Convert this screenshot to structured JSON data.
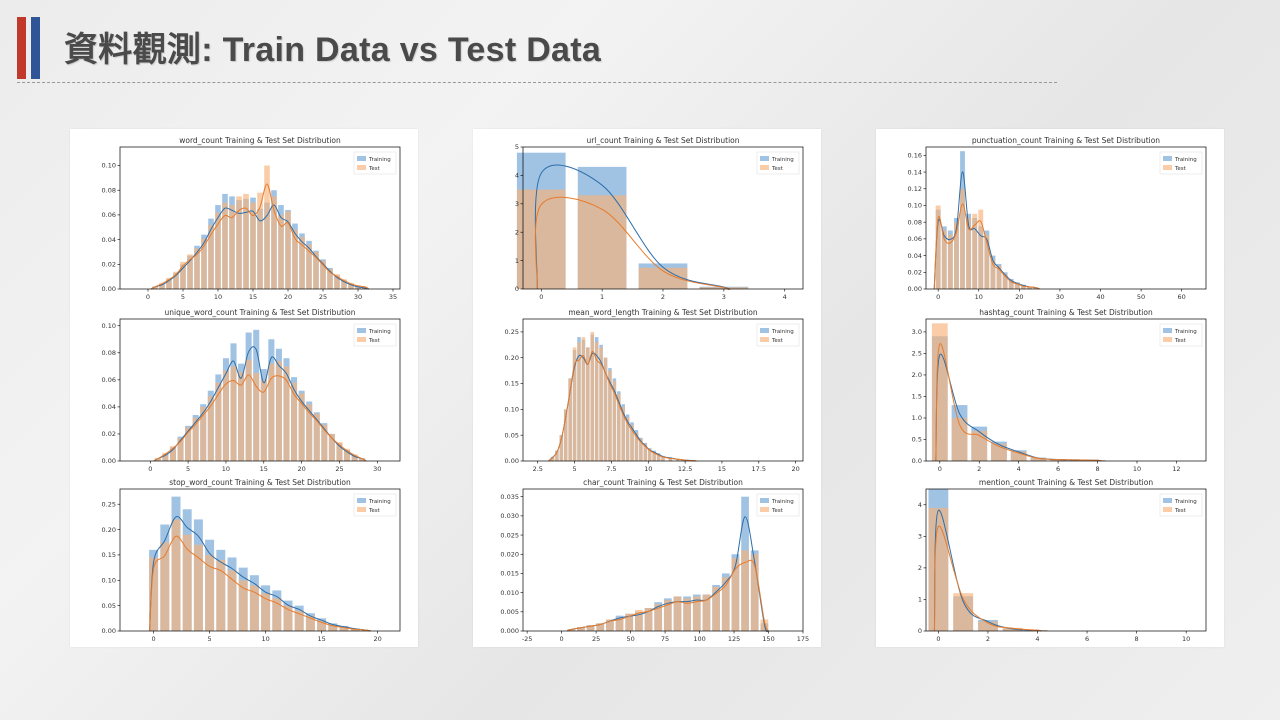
{
  "slide": {
    "title": "資料觀測: Train Data vs Test Data"
  },
  "colors": {
    "training": "#6fa3d4",
    "test": "#f7b27a",
    "kde_training": "#2c6ea9",
    "kde_test": "#e87b2b",
    "accent_red": "#c0392b",
    "accent_blue": "#2f5597"
  },
  "legend": {
    "training": "Training",
    "test": "Test"
  },
  "chart_data": [
    {
      "type": "bar",
      "title": "word_count Training & Test Set Distribution",
      "xlim": [
        -4,
        36
      ],
      "ylim": [
        0,
        0.115
      ],
      "xticks": [
        0,
        5,
        10,
        15,
        20,
        25,
        30,
        35
      ],
      "yticks": [
        0.0,
        0.02,
        0.04,
        0.06,
        0.08,
        0.1
      ],
      "ytick_labels": [
        "0.00",
        "0.02",
        "0.04",
        "0.06",
        "0.08",
        "0.10"
      ],
      "legend_position": "upper right",
      "series": [
        {
          "name": "Training",
          "x": [
            1,
            2,
            3,
            4,
            5,
            6,
            7,
            8,
            9,
            10,
            11,
            12,
            13,
            14,
            15,
            16,
            17,
            18,
            19,
            20,
            21,
            22,
            23,
            24,
            25,
            26,
            27,
            28,
            29,
            30,
            31
          ],
          "y": [
            0.002,
            0.004,
            0.008,
            0.013,
            0.02,
            0.027,
            0.035,
            0.044,
            0.057,
            0.068,
            0.077,
            0.075,
            0.072,
            0.073,
            0.074,
            0.065,
            0.07,
            0.08,
            0.068,
            0.064,
            0.053,
            0.045,
            0.039,
            0.031,
            0.024,
            0.017,
            0.011,
            0.007,
            0.004,
            0.002,
            0.001
          ]
        },
        {
          "name": "Test",
          "x": [
            1,
            2,
            3,
            4,
            5,
            6,
            7,
            8,
            9,
            10,
            11,
            12,
            13,
            14,
            15,
            16,
            17,
            18,
            19,
            20,
            21,
            22,
            23,
            24,
            25,
            26,
            27,
            28,
            29,
            30,
            31
          ],
          "y": [
            0.002,
            0.005,
            0.009,
            0.014,
            0.022,
            0.028,
            0.033,
            0.041,
            0.052,
            0.062,
            0.07,
            0.068,
            0.075,
            0.077,
            0.07,
            0.078,
            0.1,
            0.075,
            0.06,
            0.063,
            0.048,
            0.042,
            0.036,
            0.03,
            0.023,
            0.016,
            0.012,
            0.008,
            0.005,
            0.003,
            0.002
          ]
        }
      ]
    },
    {
      "type": "bar",
      "title": "unique_word_count Training & Test Set Distribution",
      "xlim": [
        -4,
        33
      ],
      "ylim": [
        0,
        0.105
      ],
      "xticks": [
        0,
        5,
        10,
        15,
        20,
        25,
        30
      ],
      "yticks": [
        0.0,
        0.02,
        0.04,
        0.06,
        0.08,
        0.1
      ],
      "ytick_labels": [
        "0.00",
        "0.02",
        "0.04",
        "0.06",
        "0.08",
        "0.10"
      ],
      "legend_position": "upper right",
      "series": [
        {
          "name": "Training",
          "x": [
            1,
            2,
            3,
            4,
            5,
            6,
            7,
            8,
            9,
            10,
            11,
            12,
            13,
            14,
            15,
            16,
            17,
            18,
            19,
            20,
            21,
            22,
            23,
            24,
            25,
            26,
            27,
            28
          ],
          "y": [
            0.002,
            0.005,
            0.01,
            0.018,
            0.026,
            0.034,
            0.042,
            0.052,
            0.064,
            0.076,
            0.087,
            0.072,
            0.095,
            0.097,
            0.068,
            0.09,
            0.083,
            0.076,
            0.062,
            0.052,
            0.044,
            0.036,
            0.028,
            0.02,
            0.013,
            0.008,
            0.004,
            0.002
          ]
        },
        {
          "name": "Test",
          "x": [
            1,
            2,
            3,
            4,
            5,
            6,
            7,
            8,
            9,
            10,
            11,
            12,
            13,
            14,
            15,
            16,
            17,
            18,
            19,
            20,
            21,
            22,
            23,
            24,
            25,
            26,
            27,
            28
          ],
          "y": [
            0.002,
            0.006,
            0.011,
            0.017,
            0.025,
            0.032,
            0.04,
            0.048,
            0.058,
            0.067,
            0.07,
            0.066,
            0.075,
            0.065,
            0.06,
            0.072,
            0.074,
            0.07,
            0.058,
            0.05,
            0.042,
            0.035,
            0.027,
            0.02,
            0.014,
            0.009,
            0.005,
            0.002
          ]
        }
      ]
    },
    {
      "type": "bar",
      "title": "stop_word_count Training & Test Set Distribution",
      "xlim": [
        -3,
        22
      ],
      "ylim": [
        0,
        0.28
      ],
      "xticks": [
        0,
        5,
        10,
        15,
        20
      ],
      "yticks": [
        0.0,
        0.05,
        0.1,
        0.15,
        0.2,
        0.25
      ],
      "ytick_labels": [
        "0.00",
        "0.05",
        "0.10",
        "0.15",
        "0.20",
        "0.25"
      ],
      "legend_position": "upper right",
      "series": [
        {
          "name": "Training",
          "x": [
            0,
            1,
            2,
            3,
            4,
            5,
            6,
            7,
            8,
            9,
            10,
            11,
            12,
            13,
            14,
            15,
            16,
            17,
            18,
            19
          ],
          "y": [
            0.16,
            0.21,
            0.265,
            0.24,
            0.22,
            0.18,
            0.16,
            0.145,
            0.125,
            0.11,
            0.09,
            0.08,
            0.06,
            0.05,
            0.035,
            0.025,
            0.015,
            0.01,
            0.005,
            0.002
          ]
        },
        {
          "name": "Test",
          "x": [
            0,
            1,
            2,
            3,
            4,
            5,
            6,
            7,
            8,
            9,
            10,
            11,
            12,
            13,
            14,
            15,
            16,
            17,
            18,
            19
          ],
          "y": [
            0.145,
            0.175,
            0.22,
            0.19,
            0.17,
            0.15,
            0.14,
            0.12,
            0.1,
            0.09,
            0.075,
            0.065,
            0.05,
            0.04,
            0.03,
            0.02,
            0.012,
            0.008,
            0.004,
            0.002
          ]
        }
      ]
    },
    {
      "type": "bar",
      "title": "url_count Training & Test Set Distribution",
      "xlim": [
        -0.3,
        4.3
      ],
      "ylim": [
        0,
        5
      ],
      "xticks": [
        0,
        1,
        2,
        3,
        4
      ],
      "yticks": [
        0,
        1,
        2,
        3,
        4,
        5
      ],
      "ytick_labels": [
        "0",
        "1",
        "2",
        "3",
        "4",
        "5"
      ],
      "legend_position": "upper right",
      "series": [
        {
          "name": "Training",
          "x": [
            0,
            1,
            2,
            3
          ],
          "y": [
            4.8,
            4.3,
            0.9,
            0.08
          ]
        },
        {
          "name": "Test",
          "x": [
            0,
            1,
            2,
            3
          ],
          "y": [
            3.5,
            3.3,
            0.75,
            0.06
          ]
        }
      ]
    },
    {
      "type": "bar",
      "title": "mean_word_length Training & Test Set Distribution",
      "xlim": [
        1.5,
        20.5
      ],
      "ylim": [
        0,
        0.275
      ],
      "xticks": [
        2.5,
        5.0,
        7.5,
        10.0,
        12.5,
        15.0,
        17.5,
        20.0
      ],
      "yticks": [
        0.0,
        0.05,
        0.1,
        0.15,
        0.2,
        0.25
      ],
      "ytick_labels": [
        "0.00",
        "0.05",
        "0.10",
        "0.15",
        "0.20",
        "0.25"
      ],
      "legend_position": "upper right",
      "series": [
        {
          "name": "Training",
          "x": [
            3.5,
            3.8,
            4.1,
            4.4,
            4.7,
            5.0,
            5.3,
            5.6,
            5.9,
            6.2,
            6.5,
            6.8,
            7.1,
            7.4,
            7.7,
            8.0,
            8.3,
            8.6,
            8.9,
            9.2,
            9.5,
            9.8,
            10.1,
            10.4,
            10.7,
            11.0,
            11.5,
            12.0,
            12.5,
            13.0
          ],
          "y": [
            0.008,
            0.02,
            0.05,
            0.1,
            0.16,
            0.215,
            0.24,
            0.235,
            0.22,
            0.245,
            0.24,
            0.225,
            0.2,
            0.18,
            0.16,
            0.135,
            0.11,
            0.09,
            0.075,
            0.06,
            0.045,
            0.035,
            0.025,
            0.02,
            0.015,
            0.01,
            0.007,
            0.004,
            0.002,
            0.001
          ]
        },
        {
          "name": "Test",
          "x": [
            3.5,
            3.8,
            4.1,
            4.4,
            4.7,
            5.0,
            5.3,
            5.6,
            5.9,
            6.2,
            6.5,
            6.8,
            7.1,
            7.4,
            7.7,
            8.0,
            8.3,
            8.6,
            8.9,
            9.2,
            9.5,
            9.8,
            10.1,
            10.4,
            10.7,
            11.0,
            11.5,
            12.0,
            12.5,
            13.0
          ],
          "y": [
            0.007,
            0.02,
            0.05,
            0.1,
            0.16,
            0.22,
            0.23,
            0.24,
            0.22,
            0.25,
            0.23,
            0.22,
            0.2,
            0.175,
            0.155,
            0.13,
            0.105,
            0.085,
            0.07,
            0.055,
            0.043,
            0.033,
            0.024,
            0.018,
            0.013,
            0.009,
            0.006,
            0.004,
            0.002,
            0.001
          ]
        }
      ]
    },
    {
      "type": "bar",
      "title": "char_count Training & Test Set Distribution",
      "xlim": [
        -28,
        175
      ],
      "ylim": [
        0,
        0.037
      ],
      "xticks": [
        -25,
        0,
        25,
        50,
        75,
        100,
        125,
        150,
        175
      ],
      "yticks": [
        0.0,
        0.005,
        0.01,
        0.015,
        0.02,
        0.025,
        0.03,
        0.035
      ],
      "ytick_labels": [
        "0.000",
        "0.005",
        "0.010",
        "0.015",
        "0.020",
        "0.025",
        "0.030",
        "0.035"
      ],
      "legend_position": "upper right",
      "series": [
        {
          "name": "Training",
          "x": [
            7,
            14,
            21,
            28,
            35,
            42,
            49,
            56,
            63,
            70,
            77,
            84,
            91,
            98,
            105,
            112,
            119,
            126,
            133,
            140,
            147
          ],
          "y": [
            0.0005,
            0.001,
            0.0015,
            0.002,
            0.003,
            0.004,
            0.0045,
            0.005,
            0.006,
            0.0075,
            0.0085,
            0.009,
            0.009,
            0.0095,
            0.0095,
            0.012,
            0.015,
            0.02,
            0.035,
            0.021,
            0.002
          ]
        },
        {
          "name": "Test",
          "x": [
            7,
            14,
            21,
            28,
            35,
            42,
            49,
            56,
            63,
            70,
            77,
            84,
            91,
            98,
            105,
            112,
            119,
            126,
            133,
            140,
            147
          ],
          "y": [
            0.0005,
            0.001,
            0.0015,
            0.002,
            0.003,
            0.0035,
            0.0045,
            0.0055,
            0.006,
            0.007,
            0.008,
            0.009,
            0.0085,
            0.009,
            0.0095,
            0.0115,
            0.014,
            0.019,
            0.021,
            0.02,
            0.003
          ]
        }
      ]
    },
    {
      "type": "bar",
      "title": "punctuation_count Training & Test Set Distribution",
      "xlim": [
        -3,
        66
      ],
      "ylim": [
        0,
        0.17
      ],
      "xticks": [
        0,
        10,
        20,
        30,
        40,
        50,
        60
      ],
      "yticks": [
        0.0,
        0.02,
        0.04,
        0.06,
        0.08,
        0.1,
        0.12,
        0.14,
        0.16
      ],
      "ytick_labels": [
        "0.00",
        "0.02",
        "0.04",
        "0.06",
        "0.08",
        "0.10",
        "0.12",
        "0.14",
        "0.16"
      ],
      "legend_position": "upper right",
      "series": [
        {
          "name": "Training",
          "x": [
            0,
            1.5,
            3,
            4.5,
            6,
            7.5,
            9,
            10.5,
            12,
            13.5,
            15,
            16.5,
            18,
            19.5,
            21,
            22.5,
            24
          ],
          "y": [
            0.095,
            0.075,
            0.07,
            0.085,
            0.165,
            0.09,
            0.085,
            0.075,
            0.07,
            0.04,
            0.03,
            0.02,
            0.012,
            0.008,
            0.005,
            0.003,
            0.002
          ]
        },
        {
          "name": "Test",
          "x": [
            0,
            1.5,
            3,
            4.5,
            6,
            7.5,
            9,
            10.5,
            12,
            13.5,
            15,
            16.5,
            18,
            19.5,
            21,
            22.5,
            24
          ],
          "y": [
            0.1,
            0.07,
            0.065,
            0.08,
            0.12,
            0.085,
            0.09,
            0.095,
            0.065,
            0.035,
            0.028,
            0.018,
            0.01,
            0.007,
            0.004,
            0.003,
            0.002
          ]
        }
      ]
    },
    {
      "type": "bar",
      "title": "hashtag_count Training & Test Set Distribution",
      "xlim": [
        -0.7,
        13.5
      ],
      "ylim": [
        0,
        3.3
      ],
      "xticks": [
        0,
        2,
        4,
        6,
        8,
        10,
        12
      ],
      "yticks": [
        0.0,
        0.5,
        1.0,
        1.5,
        2.0,
        2.5,
        3.0
      ],
      "ytick_labels": [
        "0.0",
        "0.5",
        "1.0",
        "1.5",
        "2.0",
        "2.5",
        "3.0"
      ],
      "legend_position": "upper right",
      "series": [
        {
          "name": "Training",
          "x": [
            0,
            1,
            2,
            3,
            4,
            5,
            6,
            7,
            8
          ],
          "y": [
            2.9,
            1.3,
            0.8,
            0.45,
            0.25,
            0.08,
            0.04,
            0.03,
            0.02
          ]
        },
        {
          "name": "Test",
          "x": [
            0,
            1,
            2,
            3,
            4,
            5,
            6,
            7,
            8
          ],
          "y": [
            3.2,
            1.0,
            0.7,
            0.4,
            0.22,
            0.07,
            0.04,
            0.03,
            0.02
          ]
        }
      ]
    },
    {
      "type": "bar",
      "title": "mention_count Training & Test Set Distribution",
      "xlim": [
        -0.5,
        10.8
      ],
      "ylim": [
        0,
        4.5
      ],
      "xticks": [
        0,
        2,
        4,
        6,
        8,
        10
      ],
      "yticks": [
        0,
        1,
        2,
        3,
        4
      ],
      "ytick_labels": [
        "0",
        "1",
        "2",
        "3",
        "4"
      ],
      "legend_position": "upper right",
      "series": [
        {
          "name": "Training",
          "x": [
            0,
            1,
            2,
            3,
            4
          ],
          "y": [
            4.5,
            1.1,
            0.35,
            0.08,
            0.03
          ]
        },
        {
          "name": "Test",
          "x": [
            0,
            1,
            2,
            3,
            4
          ],
          "y": [
            3.9,
            1.2,
            0.3,
            0.1,
            0.03
          ]
        }
      ]
    }
  ]
}
